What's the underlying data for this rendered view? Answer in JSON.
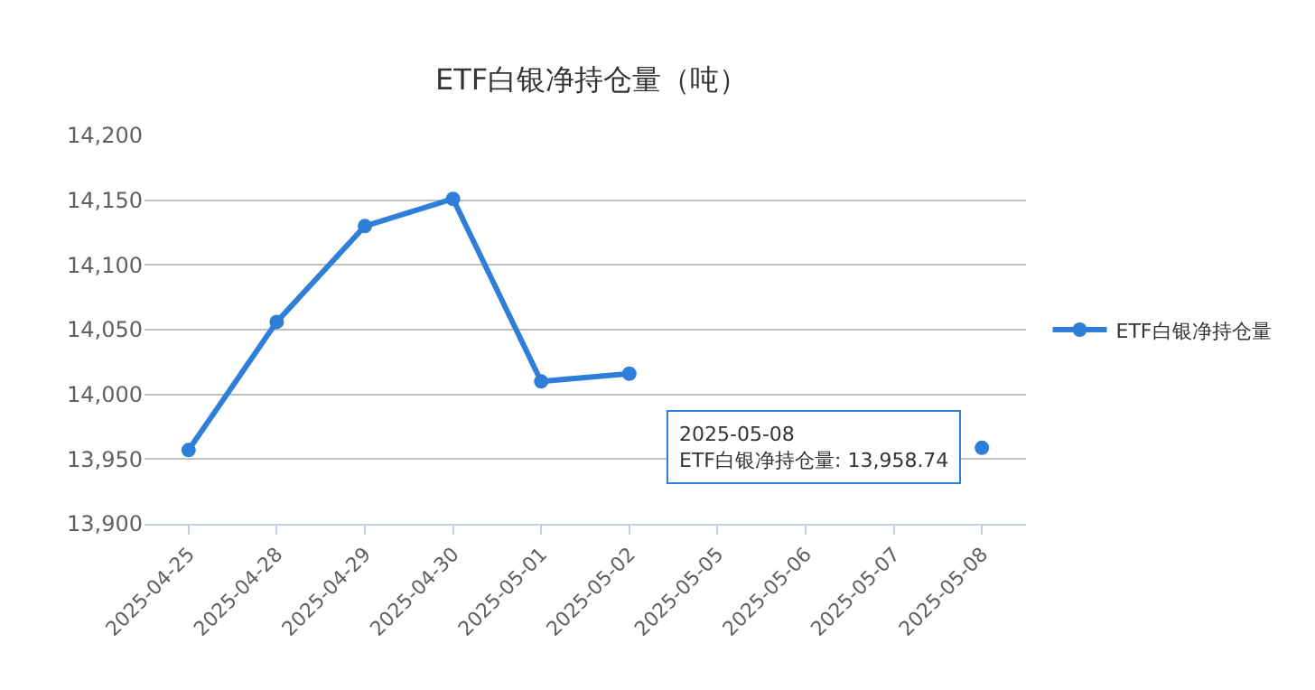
{
  "chart_data": {
    "type": "line",
    "title": "ETF白银净持仓量（吨）",
    "categories": [
      "2025-04-25",
      "2025-04-28",
      "2025-04-29",
      "2025-04-30",
      "2025-05-01",
      "2025-05-02",
      "2025-05-05",
      "2025-05-06",
      "2025-05-07",
      "2025-05-08"
    ],
    "series": [
      {
        "name": "ETF白银净持仓量",
        "color": "#2f7ed8",
        "values": [
          13957,
          14056,
          14130,
          14151,
          14010,
          14016,
          null,
          null,
          null,
          13958.74
        ]
      }
    ],
    "ylim": [
      13900,
      14200
    ],
    "yticks": [
      {
        "value": 13900,
        "label": "13,900"
      },
      {
        "value": 13950,
        "label": "13,950"
      },
      {
        "value": 14000,
        "label": "14,000"
      },
      {
        "value": 14050,
        "label": "14,050"
      },
      {
        "value": 14100,
        "label": "14,100"
      },
      {
        "value": 14150,
        "label": "14,150"
      },
      {
        "value": 14200,
        "label": "14,200"
      }
    ],
    "grid": "y",
    "legend": "right",
    "marker": "circle",
    "line_style": "solid",
    "annotations": [
      {
        "text": "2025-05-08\nETF白银净持仓量: 13,958.74",
        "x": "2025-05-08",
        "y": 13958.74
      }
    ]
  }
}
